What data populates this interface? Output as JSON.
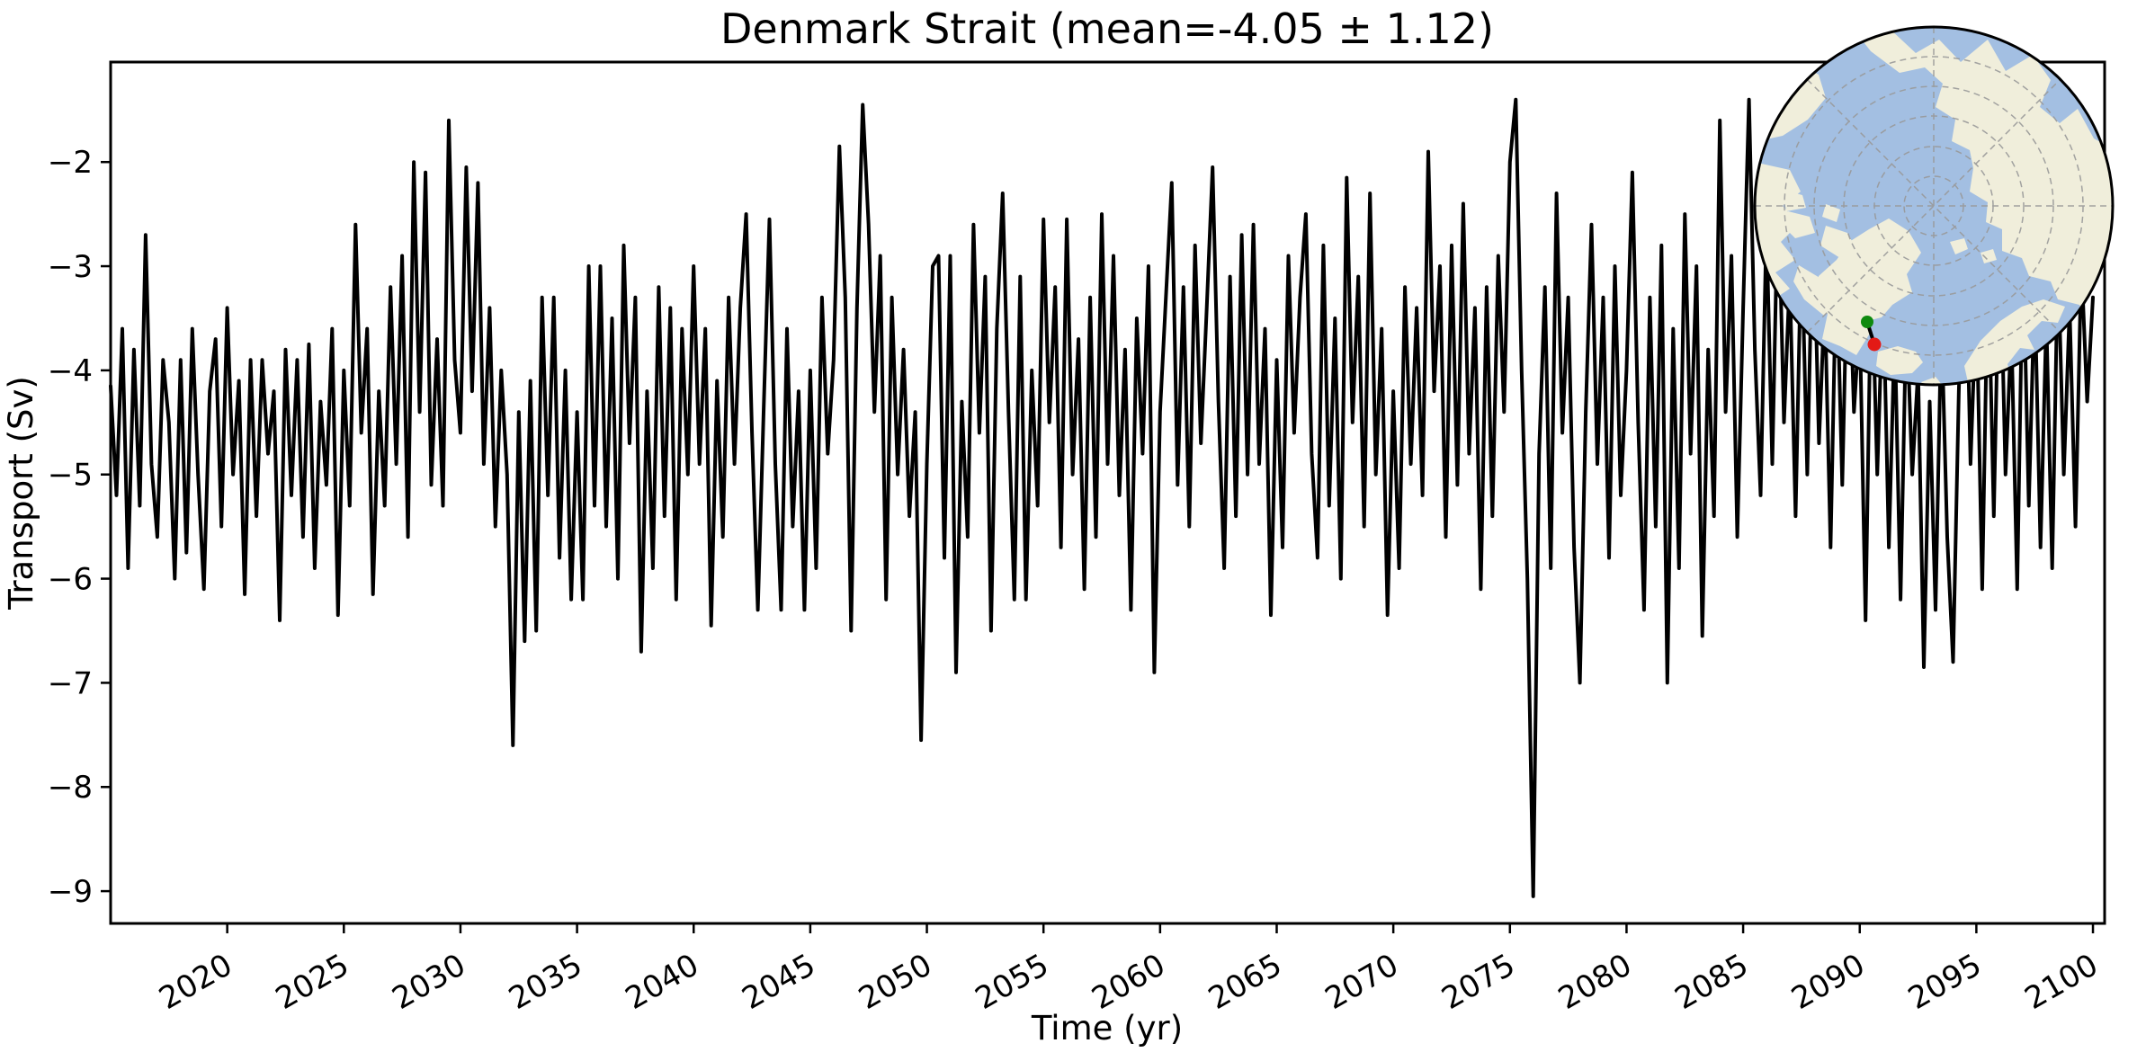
{
  "title": {
    "text": "Denmark Strait (mean=-4.05 ± 1.12)",
    "strait_name": "Denmark Strait",
    "mean": -4.05,
    "std": 1.12
  },
  "x_axis": {
    "label": "Time (yr)",
    "tick_years": [
      2020,
      2025,
      2030,
      2035,
      2040,
      2045,
      2050,
      2055,
      2060,
      2065,
      2070,
      2075,
      2080,
      2085,
      2090,
      2095,
      2100
    ],
    "min": 2015.0,
    "max": 2100.5
  },
  "y_axis": {
    "label": "Transport (Sv)",
    "tick_values": [
      -2,
      -3,
      -4,
      -5,
      -6,
      -7,
      -8,
      -9
    ],
    "tick_labels": [
      "−2",
      "−3",
      "−4",
      "−5",
      "−6",
      "−7",
      "−8",
      "−9"
    ],
    "min": -9.31,
    "max": -1.04
  },
  "chart_data": {
    "type": "line",
    "series_name": "Denmark Strait volume transport",
    "line_color": "#000000",
    "line_width": 4,
    "t_start": 2015.0,
    "t_step": 0.25,
    "xlabel": "Time (yr)",
    "ylabel": "Transport (Sv)",
    "xlim": [
      2015.0,
      2100.5
    ],
    "ylim": [
      -9.31,
      -1.04
    ],
    "grid": false,
    "values": [
      -4.15,
      -5.2,
      -3.6,
      -5.9,
      -3.8,
      -5.3,
      -2.7,
      -4.9,
      -5.6,
      -3.9,
      -4.5,
      -6.0,
      -3.9,
      -5.75,
      -3.6,
      -5.0,
      -6.1,
      -4.2,
      -3.7,
      -5.5,
      -3.4,
      -5.0,
      -4.1,
      -6.15,
      -3.9,
      -5.4,
      -3.9,
      -4.8,
      -4.2,
      -6.4,
      -3.8,
      -5.2,
      -3.9,
      -5.6,
      -3.75,
      -5.9,
      -4.3,
      -5.1,
      -3.6,
      -6.35,
      -4.0,
      -5.3,
      -2.6,
      -4.6,
      -3.6,
      -6.15,
      -4.2,
      -5.3,
      -3.2,
      -4.9,
      -2.9,
      -5.6,
      -2.0,
      -4.4,
      -2.1,
      -5.1,
      -3.7,
      -5.3,
      -1.6,
      -3.9,
      -4.6,
      -2.05,
      -4.2,
      -2.2,
      -4.9,
      -3.4,
      -5.5,
      -4.0,
      -5.0,
      -7.6,
      -4.4,
      -6.6,
      -4.1,
      -6.5,
      -3.3,
      -5.2,
      -3.3,
      -5.8,
      -4.0,
      -6.2,
      -4.4,
      -6.2,
      -3.0,
      -5.3,
      -3.0,
      -5.5,
      -3.5,
      -6.0,
      -2.8,
      -4.7,
      -3.3,
      -6.7,
      -4.2,
      -5.9,
      -3.2,
      -5.4,
      -3.4,
      -6.2,
      -3.6,
      -5.0,
      -3.0,
      -4.9,
      -3.6,
      -6.45,
      -4.1,
      -5.6,
      -3.3,
      -4.9,
      -3.4,
      -2.5,
      -4.6,
      -6.3,
      -4.4,
      -2.55,
      -4.9,
      -6.3,
      -3.6,
      -5.5,
      -4.2,
      -6.3,
      -4.0,
      -5.9,
      -3.3,
      -4.8,
      -3.9,
      -1.85,
      -3.3,
      -6.5,
      -3.4,
      -1.45,
      -2.6,
      -4.4,
      -2.9,
      -6.2,
      -3.3,
      -5.0,
      -3.8,
      -5.4,
      -4.4,
      -7.55,
      -4.9,
      -3.0,
      -2.9,
      -5.8,
      -2.9,
      -6.9,
      -4.3,
      -5.6,
      -2.6,
      -4.6,
      -3.1,
      -6.5,
      -3.6,
      -2.3,
      -4.4,
      -6.2,
      -3.1,
      -6.2,
      -4.0,
      -5.3,
      -2.55,
      -4.5,
      -3.2,
      -5.7,
      -2.55,
      -5.0,
      -3.7,
      -6.1,
      -3.3,
      -5.6,
      -2.5,
      -4.9,
      -2.9,
      -5.2,
      -3.8,
      -6.3,
      -3.5,
      -4.8,
      -3.0,
      -6.9,
      -4.4,
      -3.3,
      -2.2,
      -5.1,
      -3.2,
      -5.5,
      -2.8,
      -4.7,
      -3.4,
      -2.05,
      -4.3,
      -5.9,
      -3.1,
      -5.4,
      -2.7,
      -5.0,
      -2.6,
      -4.9,
      -3.6,
      -6.35,
      -3.9,
      -5.7,
      -2.9,
      -4.6,
      -3.3,
      -2.5,
      -4.8,
      -5.8,
      -2.8,
      -5.3,
      -3.5,
      -6.0,
      -2.15,
      -4.5,
      -3.1,
      -5.5,
      -2.3,
      -5.0,
      -3.6,
      -6.35,
      -4.2,
      -5.9,
      -3.2,
      -4.9,
      -3.4,
      -5.2,
      -1.9,
      -4.2,
      -3.0,
      -5.6,
      -2.8,
      -5.1,
      -2.4,
      -4.8,
      -3.4,
      -6.1,
      -3.2,
      -5.4,
      -2.9,
      -4.4,
      -2.0,
      -1.4,
      -4.0,
      -6.0,
      -9.05,
      -4.8,
      -3.2,
      -5.9,
      -2.3,
      -4.6,
      -3.3,
      -5.7,
      -7.0,
      -4.4,
      -2.6,
      -4.9,
      -3.3,
      -5.8,
      -3.0,
      -5.2,
      -4.0,
      -2.1,
      -4.5,
      -6.3,
      -3.3,
      -5.5,
      -2.8,
      -7.0,
      -3.6,
      -5.9,
      -2.5,
      -4.8,
      -3.0,
      -6.55,
      -3.8,
      -5.4,
      -1.6,
      -4.4,
      -2.9,
      -5.6,
      -3.4,
      -1.4,
      -3.8,
      -5.2,
      -2.6,
      -4.9,
      -2.2,
      -4.5,
      -3.1,
      -5.4,
      -2.7,
      -5.0,
      -2.4,
      -4.7,
      -3.3,
      -5.7,
      -2.9,
      -5.1,
      -2.6,
      -4.4,
      -3.5,
      -6.4,
      -2.9,
      -5.0,
      -3.2,
      -5.7,
      -3.6,
      -6.2,
      -3.4,
      -5.0,
      -4.0,
      -6.85,
      -4.3,
      -6.3,
      -3.5,
      -5.6,
      -6.8,
      -4.2,
      -2.3,
      -4.9,
      -3.3,
      -6.1,
      -2.9,
      -5.4,
      -2.6,
      -5.0,
      -3.6,
      -6.1,
      -2.8,
      -5.3,
      -3.2,
      -5.7,
      -3.5,
      -5.9,
      -2.9,
      -5.0,
      -3.4,
      -5.5,
      -2.95,
      -4.3,
      -3.3
    ]
  },
  "inset_map": {
    "description": "North polar stereographic map of the Arctic with Denmark Strait section markers",
    "ocean_color": "#a3bfe2",
    "land_color": "#f0eedb",
    "grid_color": "#999999",
    "boundary_color": "#000000",
    "section_line_color": "#000000",
    "start_marker_color": "#0f8a0f",
    "end_marker_color": "#e31a16"
  }
}
